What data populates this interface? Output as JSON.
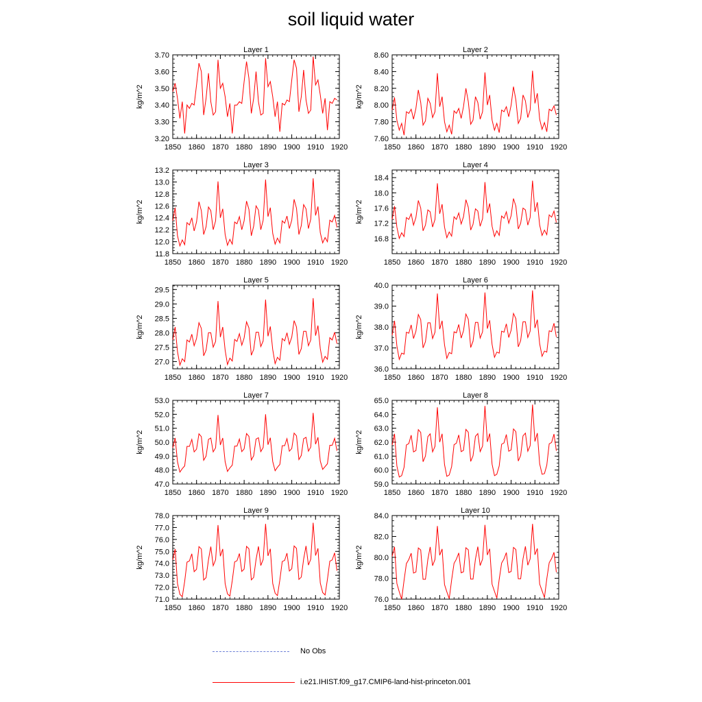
{
  "title": "soil liquid water",
  "colors": {
    "series": "#ff0000",
    "no_obs": "#6b7fd6"
  },
  "legend": {
    "items": [
      {
        "label": "No Obs",
        "style": "dashed",
        "color": "#6b7fd6"
      },
      {
        "label": "i.e21.IHIST.f09_g17.CMIP6-land-hist-princeton.001",
        "style": "solid",
        "color": "#ff0000"
      }
    ]
  },
  "chart_data": [
    {
      "type": "line",
      "title": "Layer 1",
      "ylabel": "kg/m^2",
      "ylim": [
        3.2,
        3.7
      ],
      "yticks": [
        "3.20",
        "3.30",
        "3.40",
        "3.50",
        "3.60",
        "3.70"
      ],
      "xlim": [
        1850,
        1920
      ],
      "xticks": [
        "1850",
        "1860",
        "1870",
        "1880",
        "1890",
        "1900",
        "1910",
        "1920"
      ],
      "series": [
        {
          "x_start": 1850,
          "values": [
            3.48,
            3.53,
            3.44,
            3.32,
            3.42,
            3.23,
            3.4,
            3.38,
            3.41,
            3.4,
            3.52,
            3.65,
            3.6,
            3.34,
            3.44,
            3.59,
            3.42,
            3.34,
            3.36,
            3.67,
            3.5,
            3.53,
            3.45,
            3.33,
            3.41,
            3.23,
            3.4,
            3.4,
            3.42,
            3.41,
            3.54,
            3.66,
            3.56,
            3.35,
            3.44,
            3.6,
            3.42,
            3.34,
            3.35,
            3.68,
            3.51,
            3.54,
            3.45,
            3.33,
            3.42,
            3.24,
            3.41,
            3.4,
            3.43,
            3.42,
            3.55,
            3.67,
            3.62,
            3.36,
            3.45,
            3.61,
            3.43,
            3.35,
            3.37,
            3.69,
            3.52,
            3.55,
            3.46,
            3.35,
            3.44,
            3.25,
            3.42,
            3.41,
            3.44,
            3.43
          ]
        }
      ]
    },
    {
      "type": "line",
      "title": "Layer 2",
      "ylabel": "kg/m^2",
      "ylim": [
        7.6,
        8.6
      ],
      "yticks": [
        "7.60",
        "7.80",
        "8.00",
        "8.20",
        "8.40",
        "8.60"
      ],
      "xlim": [
        1850,
        1920
      ],
      "xticks": [
        "1850",
        "1860",
        "1870",
        "1880",
        "1890",
        "1900",
        "1910",
        "1920"
      ],
      "series": [
        {
          "x_start": 1850,
          "values": [
            7.94,
            8.09,
            7.82,
            7.7,
            7.78,
            7.64,
            7.92,
            7.9,
            7.95,
            7.83,
            7.96,
            8.18,
            8.03,
            7.76,
            7.81,
            8.08,
            8.02,
            7.85,
            7.92,
            8.38,
            7.98,
            8.1,
            7.8,
            7.68,
            7.76,
            7.65,
            7.93,
            7.9,
            7.96,
            7.84,
            7.98,
            8.2,
            8.04,
            7.77,
            7.82,
            8.1,
            8.03,
            7.83,
            7.92,
            8.39,
            8.0,
            8.12,
            7.82,
            7.7,
            7.78,
            7.67,
            7.94,
            7.92,
            7.98,
            7.86,
            8.0,
            8.22,
            8.06,
            7.78,
            7.84,
            8.12,
            8.05,
            7.85,
            7.94,
            8.41,
            8.02,
            8.14,
            7.83,
            7.71,
            7.79,
            7.68,
            7.95,
            7.93,
            7.99,
            7.88
          ]
        }
      ]
    },
    {
      "type": "line",
      "title": "Layer 3",
      "ylabel": "kg/m^2",
      "ylim": [
        11.8,
        13.2
      ],
      "yticks": [
        "11.8",
        "12.0",
        "12.2",
        "12.4",
        "12.6",
        "12.8",
        "13.0",
        "13.2"
      ],
      "xlim": [
        1850,
        1920
      ],
      "xticks": [
        "1850",
        "1860",
        "1870",
        "1880",
        "1890",
        "1900",
        "1910",
        "1920"
      ],
      "series": [
        {
          "x_start": 1850,
          "values": [
            12.35,
            12.57,
            12.1,
            11.93,
            12.03,
            11.95,
            12.32,
            12.28,
            12.4,
            12.18,
            12.33,
            12.67,
            12.52,
            12.12,
            12.25,
            12.58,
            12.52,
            12.2,
            12.35,
            13.01,
            12.4,
            12.55,
            12.12,
            11.94,
            12.04,
            11.96,
            12.33,
            12.3,
            12.42,
            12.2,
            12.35,
            12.68,
            12.54,
            12.1,
            12.26,
            12.6,
            12.53,
            12.2,
            12.36,
            13.04,
            12.42,
            12.57,
            12.14,
            11.96,
            12.06,
            11.98,
            12.35,
            12.31,
            12.43,
            12.22,
            12.36,
            12.71,
            12.56,
            12.12,
            12.27,
            12.62,
            12.55,
            12.22,
            12.38,
            13.06,
            12.44,
            12.59,
            12.15,
            11.98,
            12.07,
            12.0,
            12.36,
            12.33,
            12.44,
            12.24
          ]
        }
      ]
    },
    {
      "type": "line",
      "title": "Layer 4",
      "ylabel": "kg/m^2",
      "ylim": [
        16.4,
        18.6
      ],
      "yticks": [
        "16.8",
        "17.2",
        "17.6",
        "18.0",
        "18.4"
      ],
      "xlim": [
        1850,
        1920
      ],
      "xticks": [
        "1850",
        "1860",
        "1870",
        "1880",
        "1890",
        "1900",
        "1910",
        "1920"
      ],
      "series": [
        {
          "x_start": 1850,
          "values": [
            17.3,
            17.65,
            17.1,
            16.8,
            16.95,
            16.85,
            17.35,
            17.3,
            17.45,
            17.15,
            17.35,
            17.8,
            17.6,
            17.0,
            17.15,
            17.55,
            17.5,
            17.1,
            17.3,
            18.25,
            17.45,
            17.7,
            17.1,
            16.82,
            16.97,
            16.86,
            17.37,
            17.3,
            17.47,
            17.18,
            17.37,
            17.82,
            17.62,
            17.02,
            17.17,
            17.58,
            17.52,
            17.12,
            17.32,
            18.28,
            17.47,
            17.72,
            17.12,
            16.85,
            17.0,
            16.88,
            17.39,
            17.33,
            17.5,
            17.2,
            17.4,
            17.85,
            17.65,
            17.05,
            17.2,
            17.6,
            17.55,
            17.15,
            17.35,
            18.32,
            17.5,
            17.75,
            17.15,
            16.88,
            17.02,
            16.9,
            17.42,
            17.36,
            17.52,
            17.22
          ]
        }
      ]
    },
    {
      "type": "line",
      "title": "Layer 5",
      "ylabel": "kg/m^2",
      "ylim": [
        26.75,
        29.65
      ],
      "yticks": [
        "27.0",
        "27.5",
        "28.0",
        "28.5",
        "29.0",
        "29.5"
      ],
      "xlim": [
        1850,
        1920
      ],
      "xticks": [
        "1850",
        "1860",
        "1870",
        "1880",
        "1890",
        "1900",
        "1910",
        "1920"
      ],
      "series": [
        {
          "x_start": 1850,
          "values": [
            27.75,
            28.2,
            27.35,
            26.88,
            27.1,
            27.0,
            27.75,
            27.68,
            27.95,
            27.55,
            27.8,
            28.35,
            28.15,
            27.2,
            27.4,
            28.0,
            28.0,
            27.5,
            27.7,
            29.1,
            27.85,
            28.2,
            27.4,
            26.9,
            27.12,
            27.02,
            27.77,
            27.7,
            27.97,
            27.57,
            27.82,
            28.38,
            28.17,
            27.22,
            27.42,
            28.02,
            28.02,
            27.52,
            27.72,
            29.15,
            27.88,
            28.22,
            27.42,
            26.93,
            27.15,
            27.05,
            27.8,
            27.72,
            28.0,
            27.6,
            27.85,
            28.42,
            28.2,
            27.25,
            27.45,
            28.05,
            28.05,
            27.55,
            27.75,
            29.2,
            27.9,
            28.25,
            27.45,
            26.98,
            27.18,
            27.08,
            27.83,
            27.75,
            28.02,
            27.62
          ]
        }
      ]
    },
    {
      "type": "line",
      "title": "Layer 6",
      "ylabel": "kg/m^2",
      "ylim": [
        36.0,
        40.0
      ],
      "yticks": [
        "36.0",
        "37.0",
        "38.0",
        "39.0",
        "40.0"
      ],
      "xlim": [
        1850,
        1920
      ],
      "xticks": [
        "1850",
        "1860",
        "1870",
        "1880",
        "1890",
        "1900",
        "1910",
        "1920"
      ],
      "series": [
        {
          "x_start": 1850,
          "values": [
            37.6,
            38.3,
            37.1,
            36.45,
            36.75,
            36.7,
            37.75,
            37.7,
            38.1,
            37.45,
            37.8,
            38.6,
            38.35,
            37.0,
            37.3,
            38.2,
            38.2,
            37.45,
            37.75,
            39.6,
            37.9,
            38.3,
            37.15,
            36.5,
            36.78,
            36.72,
            37.77,
            37.72,
            38.12,
            37.47,
            37.82,
            38.62,
            38.37,
            37.02,
            37.32,
            38.22,
            38.22,
            37.47,
            37.77,
            39.65,
            37.92,
            38.32,
            37.17,
            36.55,
            36.8,
            36.75,
            37.8,
            37.75,
            38.15,
            37.5,
            37.85,
            38.65,
            38.4,
            37.05,
            37.35,
            38.25,
            38.25,
            37.5,
            37.8,
            39.75,
            37.95,
            38.35,
            37.2,
            36.6,
            36.85,
            36.8,
            37.82,
            37.78,
            38.18,
            37.52
          ]
        }
      ]
    },
    {
      "type": "line",
      "title": "Layer 7",
      "ylabel": "kg/m^2",
      "ylim": [
        47.0,
        53.0
      ],
      "yticks": [
        "47.0",
        "48.0",
        "49.0",
        "50.0",
        "51.0",
        "52.0",
        "53.0"
      ],
      "xlim": [
        1850,
        1920
      ],
      "xticks": [
        "1850",
        "1860",
        "1870",
        "1880",
        "1890",
        "1900",
        "1910",
        "1920"
      ],
      "series": [
        {
          "x_start": 1850,
          "values": [
            49.6,
            50.3,
            48.6,
            47.85,
            48.1,
            48.3,
            49.7,
            49.7,
            50.2,
            49.3,
            49.5,
            50.6,
            50.4,
            48.7,
            49.0,
            50.2,
            50.3,
            49.3,
            49.6,
            51.95,
            49.8,
            50.3,
            48.6,
            47.9,
            48.15,
            48.35,
            49.72,
            49.72,
            50.22,
            49.32,
            49.52,
            50.62,
            50.42,
            48.72,
            49.02,
            50.22,
            50.32,
            49.32,
            49.62,
            52.0,
            49.82,
            50.32,
            48.62,
            47.95,
            48.2,
            48.4,
            49.75,
            49.75,
            50.25,
            49.35,
            49.55,
            50.65,
            50.45,
            48.75,
            49.05,
            50.25,
            50.35,
            49.35,
            49.65,
            52.1,
            49.85,
            50.35,
            48.65,
            48.05,
            48.25,
            48.45,
            49.78,
            49.78,
            50.28,
            49.38
          ]
        }
      ]
    },
    {
      "type": "line",
      "title": "Layer 8",
      "ylabel": "kg/m^2",
      "ylim": [
        59.0,
        65.0
      ],
      "yticks": [
        "59.0",
        "60.0",
        "61.0",
        "62.0",
        "63.0",
        "64.0",
        "65.0"
      ],
      "xlim": [
        1850,
        1920
      ],
      "xticks": [
        "1850",
        "1860",
        "1870",
        "1880",
        "1890",
        "1900",
        "1910",
        "1920"
      ],
      "series": [
        {
          "x_start": 1850,
          "values": [
            61.8,
            62.6,
            60.3,
            59.5,
            59.6,
            60.2,
            61.8,
            61.9,
            62.5,
            61.3,
            61.4,
            62.9,
            62.7,
            60.6,
            61.0,
            62.4,
            62.6,
            61.3,
            61.7,
            64.5,
            62.0,
            62.6,
            60.4,
            59.55,
            59.65,
            60.25,
            61.82,
            61.92,
            62.52,
            61.32,
            61.42,
            62.92,
            62.72,
            60.62,
            61.02,
            62.42,
            62.62,
            61.32,
            61.72,
            64.6,
            62.02,
            62.62,
            60.42,
            59.6,
            59.7,
            60.3,
            61.85,
            61.95,
            62.55,
            61.35,
            61.45,
            62.95,
            62.75,
            60.65,
            61.05,
            62.45,
            62.65,
            61.35,
            61.75,
            64.7,
            62.05,
            62.65,
            60.45,
            59.7,
            59.75,
            60.35,
            61.88,
            61.98,
            62.58,
            61.38
          ]
        }
      ]
    },
    {
      "type": "line",
      "title": "Layer 9",
      "ylabel": "kg/m^2",
      "ylim": [
        71.0,
        78.0
      ],
      "yticks": [
        "71.0",
        "72.0",
        "73.0",
        "74.0",
        "75.0",
        "76.0",
        "77.0",
        "78.0"
      ],
      "xlim": [
        1850,
        1920
      ],
      "xticks": [
        "1850",
        "1860",
        "1870",
        "1880",
        "1890",
        "1900",
        "1910",
        "1920"
      ],
      "series": [
        {
          "x_start": 1850,
          "values": [
            74.3,
            75.2,
            72.3,
            71.4,
            71.2,
            72.5,
            74.1,
            74.2,
            74.8,
            73.3,
            73.5,
            75.4,
            75.2,
            72.6,
            72.8,
            74.3,
            75.4,
            73.8,
            74.3,
            77.2,
            74.6,
            75.2,
            72.3,
            71.45,
            71.25,
            72.55,
            74.12,
            74.22,
            74.82,
            73.32,
            73.52,
            75.42,
            75.22,
            72.62,
            72.82,
            74.32,
            75.42,
            73.82,
            74.32,
            77.3,
            74.62,
            75.22,
            72.32,
            71.5,
            71.3,
            72.6,
            74.15,
            74.25,
            74.85,
            73.35,
            73.55,
            75.45,
            75.25,
            72.65,
            72.85,
            74.35,
            75.45,
            73.85,
            74.35,
            77.4,
            74.65,
            75.25,
            72.35,
            71.55,
            71.35,
            72.65,
            74.18,
            74.28,
            74.88,
            73.38
          ]
        }
      ]
    },
    {
      "type": "line",
      "title": "Layer 10",
      "ylabel": "kg/m^2",
      "ylim": [
        76.0,
        84.0
      ],
      "yticks": [
        "76.0",
        "78.0",
        "80.0",
        "82.0",
        "84.0"
      ],
      "xlim": [
        1850,
        1920
      ],
      "xticks": [
        "1850",
        "1860",
        "1870",
        "1880",
        "1890",
        "1900",
        "1910",
        "1920"
      ],
      "series": [
        {
          "x_start": 1850,
          "values": [
            80.1,
            81.0,
            77.5,
            76.7,
            76.0,
            77.8,
            79.4,
            79.8,
            80.4,
            78.5,
            78.6,
            80.9,
            80.7,
            77.9,
            77.9,
            79.8,
            81.0,
            79.2,
            79.8,
            83.0,
            80.2,
            80.8,
            77.4,
            76.7,
            76.05,
            77.85,
            79.42,
            79.82,
            80.42,
            78.52,
            78.62,
            80.92,
            80.72,
            77.92,
            77.92,
            79.82,
            81.02,
            79.22,
            79.82,
            83.1,
            80.22,
            80.82,
            77.42,
            76.75,
            76.1,
            77.9,
            79.45,
            79.85,
            80.45,
            78.55,
            78.65,
            80.95,
            80.75,
            77.95,
            77.95,
            79.85,
            81.05,
            79.25,
            79.85,
            83.2,
            80.25,
            80.85,
            77.45,
            76.8,
            76.15,
            77.95,
            79.48,
            79.88,
            80.48,
            78.58
          ]
        }
      ]
    }
  ]
}
